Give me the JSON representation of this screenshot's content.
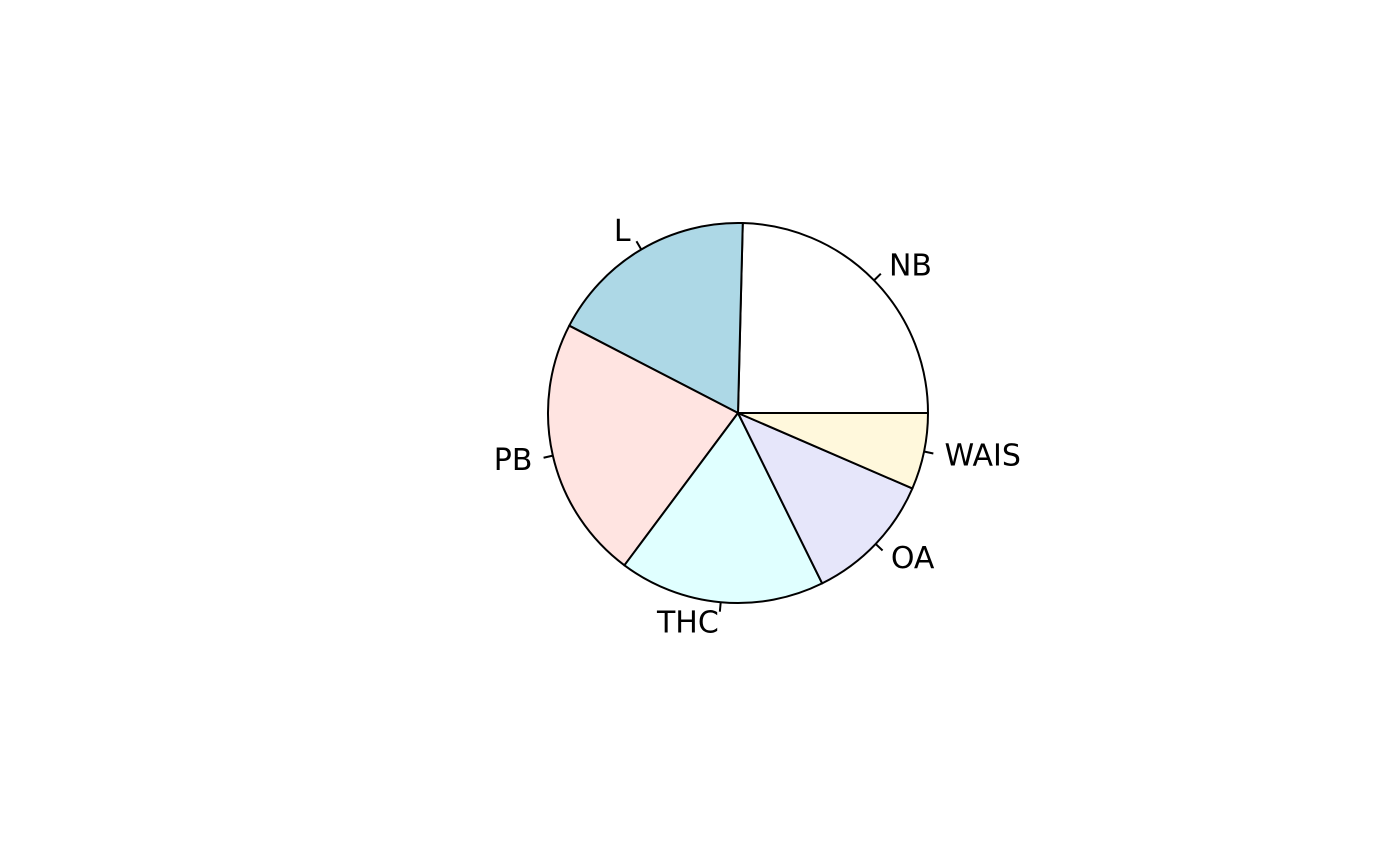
{
  "chart_data": {
    "type": "pie",
    "title": "",
    "start_angle_deg": 0,
    "direction": "counterclockwise",
    "slices": [
      {
        "label": "NB",
        "value": 24.6,
        "color": "#ffffff"
      },
      {
        "label": "L",
        "value": 17.8,
        "color": "#add8e6"
      },
      {
        "label": "PB",
        "value": 22.4,
        "color": "#ffe4e1"
      },
      {
        "label": "THC",
        "value": 17.5,
        "color": "#e0ffff"
      },
      {
        "label": "OA",
        "value": 11.2,
        "color": "#e6e6fa"
      },
      {
        "label": "WAIS",
        "value": 6.5,
        "color": "#fff8dc"
      }
    ]
  }
}
